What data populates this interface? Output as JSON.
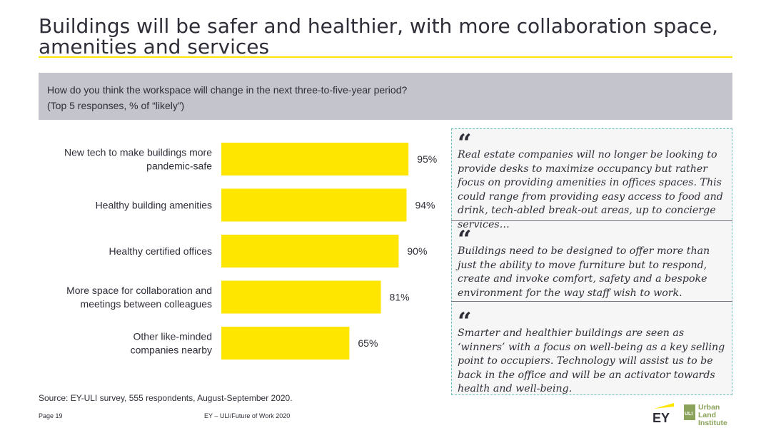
{
  "header": {
    "title": "Buildings will be safer and healthier, with more collaboration space, amenities and services"
  },
  "question": {
    "line1": "How do you think the workspace will change in the next three-to-five-year period?",
    "line2": "(Top 5 responses, % of “likely”)"
  },
  "chart_data": {
    "type": "bar",
    "orientation": "horizontal",
    "categories": [
      [
        "New tech to make buildings more",
        "pandemic-safe"
      ],
      [
        "Healthy building amenities"
      ],
      [
        "Healthy certified offices"
      ],
      [
        "More space for collaboration and",
        "meetings between colleagues"
      ],
      [
        "Other like-minded",
        "companies nearby"
      ]
    ],
    "values": [
      95,
      94,
      90,
      81,
      65
    ],
    "value_labels": [
      "95%",
      "94%",
      "90%",
      "81%",
      "65%"
    ],
    "xlim": [
      0,
      100
    ],
    "bar_color": "#ffe600",
    "legend": "none",
    "grid": false
  },
  "quotes": [
    {
      "mark": "“",
      "text": "Real estate companies will no longer be looking to provide desks to maximize occupancy but rather focus on providing amenities in offices spaces. This could range from providing easy access to food and drink, tech-abled break-out areas, up to concierge services…"
    },
    {
      "mark": "“",
      "text": "Buildings need to be designed to offer more than just the ability to move furniture but to respond, create and invoke comfort, safety and a bespoke environment for the way staff wish to work."
    },
    {
      "mark": "“",
      "text": "Smarter and healthier buildings are seen as ‘winners’ with a focus on well-being as a key selling point to occupiers. Technology will assist us to be back in the office and will be an activator towards health and well-being."
    }
  ],
  "source": "Source: EY-ULI survey, 555 respondents, August-September 2020.",
  "footer": {
    "page": "Page 19",
    "center": "EY – ULI/Future of Work 2020"
  },
  "logos": {
    "ey": "EY",
    "uli_line1": "Urban Land",
    "uli_line2": "Institute",
    "uli_mark": "ULI"
  },
  "colors": {
    "accent": "#ffe600",
    "text": "#2e2e38",
    "question_bg": "#c4c4cd",
    "uli_green": "#8aa25a"
  }
}
